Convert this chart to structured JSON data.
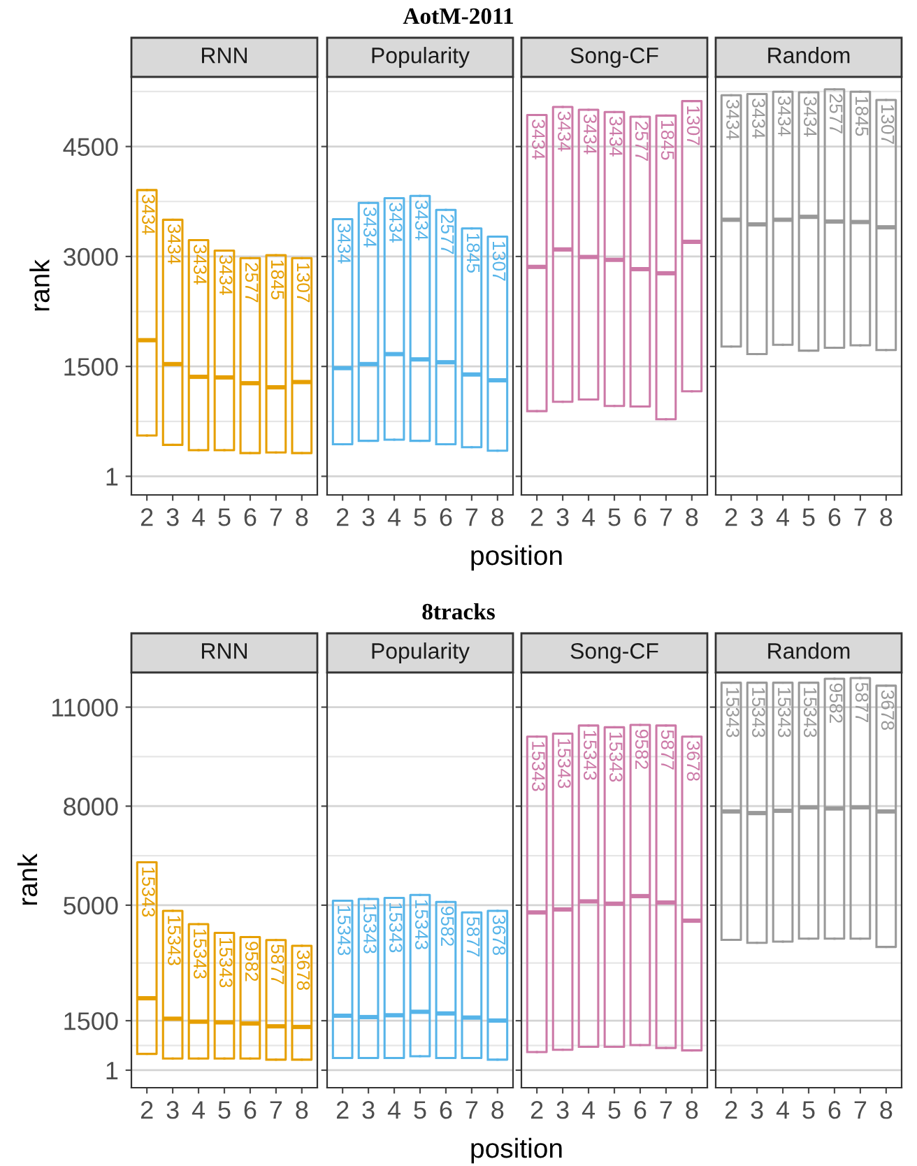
{
  "chart_data": [
    {
      "type": "other",
      "title": "AotM-2011"
    },
    {
      "type": "box",
      "title": "RNN",
      "xlabel": "position",
      "ylabel": "rank",
      "categories": [
        "2",
        "3",
        "4",
        "5",
        "6",
        "7",
        "8"
      ],
      "color": "#e69f00",
      "ylim": [
        -253,
        5450
      ],
      "yticks": [
        1,
        1500,
        3000,
        4500
      ],
      "grid": true,
      "boxes": [
        {
          "low": 557,
          "q1": 557,
          "median": 1858,
          "q3": 3906,
          "high": 3906
        },
        {
          "low": 430,
          "q1": 430,
          "median": 1532,
          "q3": 3501,
          "high": 3501
        },
        {
          "low": 358,
          "q1": 358,
          "median": 1358,
          "q3": 3223,
          "high": 3223
        },
        {
          "low": 358,
          "q1": 358,
          "median": 1350,
          "q3": 3080,
          "high": 3080
        },
        {
          "low": 318,
          "q1": 318,
          "median": 1271,
          "q3": 2977,
          "high": 2977
        },
        {
          "low": 326,
          "q1": 326,
          "median": 1215,
          "q3": 3017,
          "high": 3017
        },
        {
          "low": 318,
          "q1": 318,
          "median": 1287,
          "q3": 2977,
          "high": 2977
        }
      ],
      "annotations": [
        {
          "text": "3434",
          "x": "2",
          "y": 3906
        },
        {
          "text": "3434",
          "x": "3",
          "y": 3501
        },
        {
          "text": "3434",
          "x": "4",
          "y": 3223
        },
        {
          "text": "3434",
          "x": "5",
          "y": 3080
        },
        {
          "text": "2577",
          "x": "6",
          "y": 2977
        },
        {
          "text": "1845",
          "x": "7",
          "y": 3017
        },
        {
          "text": "1307",
          "x": "8",
          "y": 2977
        }
      ]
    },
    {
      "type": "box",
      "title": "Popularity",
      "categories": [
        "2",
        "3",
        "4",
        "5",
        "6",
        "7",
        "8"
      ],
      "color": "#56b4e9",
      "ylim": [
        -253,
        5450
      ],
      "yticks": [
        1,
        1500,
        3000,
        4500
      ],
      "grid": true,
      "tick_labels": "x",
      "boxes": [
        {
          "low": 438,
          "q1": 438,
          "median": 1477,
          "q3": 3509,
          "high": 3509
        },
        {
          "low": 485,
          "q1": 485,
          "median": 1532,
          "q3": 3731,
          "high": 3731
        },
        {
          "low": 501,
          "q1": 501,
          "median": 1668,
          "q3": 3795,
          "high": 3795
        },
        {
          "low": 485,
          "q1": 485,
          "median": 1596,
          "q3": 3827,
          "high": 3827
        },
        {
          "low": 438,
          "q1": 438,
          "median": 1557,
          "q3": 3636,
          "high": 3636
        },
        {
          "low": 398,
          "q1": 398,
          "median": 1390,
          "q3": 3382,
          "high": 3382
        },
        {
          "low": 350,
          "q1": 350,
          "median": 1311,
          "q3": 3271,
          "high": 3271
        }
      ],
      "annotations": [
        {
          "text": "3434",
          "x": "2",
          "y": 3509
        },
        {
          "text": "3434",
          "x": "3",
          "y": 3731
        },
        {
          "text": "3434",
          "x": "4",
          "y": 3795
        },
        {
          "text": "3434",
          "x": "5",
          "y": 3827
        },
        {
          "text": "2577",
          "x": "6",
          "y": 3636
        },
        {
          "text": "1845",
          "x": "7",
          "y": 3382
        },
        {
          "text": "1307",
          "x": "8",
          "y": 3271
        }
      ]
    },
    {
      "type": "box",
      "title": "Song-CF",
      "categories": [
        "2",
        "3",
        "4",
        "5",
        "6",
        "7",
        "8"
      ],
      "color": "#cc79a7",
      "ylim": [
        -253,
        5450
      ],
      "yticks": [
        1,
        1500,
        3000,
        4500
      ],
      "grid": true,
      "tick_labels": "x",
      "boxes": [
        {
          "low": 890,
          "q1": 890,
          "median": 2858,
          "q3": 4930,
          "high": 4930
        },
        {
          "low": 1017,
          "q1": 1017,
          "median": 3096,
          "q3": 5040,
          "high": 5040
        },
        {
          "low": 1049,
          "q1": 1049,
          "median": 2993,
          "q3": 5001,
          "high": 5001
        },
        {
          "low": 961,
          "q1": 961,
          "median": 2954,
          "q3": 4970,
          "high": 4970
        },
        {
          "low": 953,
          "q1": 953,
          "median": 2827,
          "q3": 4906,
          "high": 4906
        },
        {
          "low": 779,
          "q1": 779,
          "median": 2771,
          "q3": 4922,
          "high": 4922
        },
        {
          "low": 1160,
          "q1": 1160,
          "median": 3200,
          "q3": 5120,
          "high": 5120
        }
      ],
      "annotations": [
        {
          "text": "3434",
          "x": "2",
          "y": 4930
        },
        {
          "text": "3434",
          "x": "3",
          "y": 5040
        },
        {
          "text": "3434",
          "x": "4",
          "y": 5001
        },
        {
          "text": "3434",
          "x": "5",
          "y": 4970
        },
        {
          "text": "2577",
          "x": "6",
          "y": 4906
        },
        {
          "text": "1845",
          "x": "7",
          "y": 4922
        },
        {
          "text": "1307",
          "x": "8",
          "y": 5120
        }
      ]
    },
    {
      "type": "box",
      "title": "Random",
      "categories": [
        "2",
        "3",
        "4",
        "5",
        "6",
        "7",
        "8"
      ],
      "color": "#999999",
      "ylim": [
        -253,
        5450
      ],
      "yticks": [
        1,
        1500,
        3000,
        4500
      ],
      "grid": true,
      "tick_labels": "x",
      "boxes": [
        {
          "low": 1771,
          "q1": 1771,
          "median": 3501,
          "q3": 5200,
          "high": 5200
        },
        {
          "low": 1668,
          "q1": 1668,
          "median": 3438,
          "q3": 5216,
          "high": 5216
        },
        {
          "low": 1795,
          "q1": 1795,
          "median": 3501,
          "q3": 5248,
          "high": 5248
        },
        {
          "low": 1715,
          "q1": 1715,
          "median": 3541,
          "q3": 5240,
          "high": 5240
        },
        {
          "low": 1755,
          "q1": 1755,
          "median": 3477,
          "q3": 5280,
          "high": 5280
        },
        {
          "low": 1787,
          "q1": 1787,
          "median": 3470,
          "q3": 5248,
          "high": 5248
        },
        {
          "low": 1723,
          "q1": 1723,
          "median": 3398,
          "q3": 5136,
          "high": 5136
        }
      ],
      "annotations": [
        {
          "text": "3434",
          "x": "2",
          "y": 5200
        },
        {
          "text": "3434",
          "x": "3",
          "y": 5216
        },
        {
          "text": "3434",
          "x": "4",
          "y": 5248
        },
        {
          "text": "3434",
          "x": "5",
          "y": 5240
        },
        {
          "text": "2577",
          "x": "6",
          "y": 5280
        },
        {
          "text": "1845",
          "x": "7",
          "y": 5248
        },
        {
          "text": "1307",
          "x": "8",
          "y": 5136
        }
      ]
    },
    {
      "type": "other",
      "title": "8tracks"
    },
    {
      "type": "box",
      "title": "RNN",
      "xlabel": "position",
      "ylabel": "rank",
      "categories": [
        "2",
        "3",
        "4",
        "5",
        "6",
        "7",
        "8"
      ],
      "color": "#e69f00",
      "ylim": [
        -530,
        12050
      ],
      "yticks": [
        1,
        1500,
        5000,
        8000,
        11000
      ],
      "grid": true,
      "boxes": [
        {
          "low": 495,
          "q1": 495,
          "median": 2180,
          "q3": 6300,
          "high": 6300
        },
        {
          "low": 355,
          "q1": 355,
          "median": 1560,
          "q3": 4830,
          "high": 4830
        },
        {
          "low": 355,
          "q1": 355,
          "median": 1470,
          "q3": 4425,
          "high": 4425
        },
        {
          "low": 355,
          "q1": 355,
          "median": 1450,
          "q3": 4160,
          "high": 4160
        },
        {
          "low": 355,
          "q1": 355,
          "median": 1415,
          "q3": 4035,
          "high": 4035
        },
        {
          "low": 320,
          "q1": 320,
          "median": 1330,
          "q3": 3945,
          "high": 3945
        },
        {
          "low": 320,
          "q1": 320,
          "median": 1310,
          "q3": 3770,
          "high": 3770
        }
      ],
      "annotations": [
        {
          "text": "15343",
          "x": "2",
          "y": 6300
        },
        {
          "text": "15343",
          "x": "3",
          "y": 4830
        },
        {
          "text": "15343",
          "x": "4",
          "y": 4425
        },
        {
          "text": "15343",
          "x": "5",
          "y": 4160
        },
        {
          "text": "9582",
          "x": "6",
          "y": 4035
        },
        {
          "text": "5877",
          "x": "7",
          "y": 3945
        },
        {
          "text": "3678",
          "x": "8",
          "y": 3770
        }
      ]
    },
    {
      "type": "box",
      "title": "Popularity",
      "categories": [
        "2",
        "3",
        "4",
        "5",
        "6",
        "7",
        "8"
      ],
      "color": "#56b4e9",
      "ylim": [
        -530,
        12050
      ],
      "yticks": [
        1,
        1500,
        5000,
        8000,
        11000
      ],
      "grid": true,
      "tick_labels": "x",
      "boxes": [
        {
          "low": 370,
          "q1": 370,
          "median": 1650,
          "q3": 5135,
          "high": 5135
        },
        {
          "low": 370,
          "q1": 370,
          "median": 1610,
          "q3": 5190,
          "high": 5190
        },
        {
          "low": 370,
          "q1": 370,
          "median": 1665,
          "q3": 5220,
          "high": 5220
        },
        {
          "low": 425,
          "q1": 425,
          "median": 1770,
          "q3": 5310,
          "high": 5310
        },
        {
          "low": 370,
          "q1": 370,
          "median": 1720,
          "q3": 5100,
          "high": 5100
        },
        {
          "low": 370,
          "q1": 370,
          "median": 1595,
          "q3": 4780,
          "high": 4780
        },
        {
          "low": 320,
          "q1": 320,
          "median": 1505,
          "q3": 4830,
          "high": 4830
        }
      ],
      "annotations": [
        {
          "text": "15343",
          "x": "2",
          "y": 5135
        },
        {
          "text": "15343",
          "x": "3",
          "y": 5190
        },
        {
          "text": "15343",
          "x": "4",
          "y": 5220
        },
        {
          "text": "15343",
          "x": "5",
          "y": 5310
        },
        {
          "text": "9582",
          "x": "6",
          "y": 5100
        },
        {
          "text": "5877",
          "x": "7",
          "y": 4780
        },
        {
          "text": "3678",
          "x": "8",
          "y": 4830
        }
      ]
    },
    {
      "type": "box",
      "title": "Song-CF",
      "categories": [
        "2",
        "3",
        "4",
        "5",
        "6",
        "7",
        "8"
      ],
      "color": "#cc79a7",
      "ylim": [
        -530,
        12050
      ],
      "yticks": [
        1,
        1500,
        5000,
        8000,
        11000
      ],
      "grid": true,
      "tick_labels": "x",
      "boxes": [
        {
          "low": 550,
          "q1": 550,
          "median": 4780,
          "q3": 10107,
          "high": 10107
        },
        {
          "low": 620,
          "q1": 620,
          "median": 4870,
          "q3": 10195,
          "high": 10195
        },
        {
          "low": 710,
          "q1": 710,
          "median": 5115,
          "q3": 10443,
          "high": 10443
        },
        {
          "low": 710,
          "q1": 710,
          "median": 5045,
          "q3": 10390,
          "high": 10390
        },
        {
          "low": 760,
          "q1": 760,
          "median": 5275,
          "q3": 10460,
          "high": 10460
        },
        {
          "low": 675,
          "q1": 675,
          "median": 5080,
          "q3": 10443,
          "high": 10443
        },
        {
          "low": 600,
          "q1": 600,
          "median": 4530,
          "q3": 10107,
          "high": 10107
        }
      ],
      "annotations": [
        {
          "text": "15343",
          "x": "2",
          "y": 10107
        },
        {
          "text": "15343",
          "x": "3",
          "y": 10195
        },
        {
          "text": "15343",
          "x": "4",
          "y": 10443
        },
        {
          "text": "15343",
          "x": "5",
          "y": 10390
        },
        {
          "text": "9582",
          "x": "6",
          "y": 10460
        },
        {
          "text": "5877",
          "x": "7",
          "y": 10443
        },
        {
          "text": "3678",
          "x": "8",
          "y": 10107
        }
      ]
    },
    {
      "type": "box",
      "title": "Random",
      "categories": [
        "2",
        "3",
        "4",
        "5",
        "6",
        "7",
        "8"
      ],
      "color": "#999999",
      "ylim": [
        -530,
        12050
      ],
      "yticks": [
        1,
        1500,
        5000,
        8000,
        11000
      ],
      "grid": true,
      "tick_labels": "x",
      "boxes": [
        {
          "low": 3950,
          "q1": 3950,
          "median": 7840,
          "q3": 11740,
          "high": 11740
        },
        {
          "low": 3860,
          "q1": 3860,
          "median": 7790,
          "q3": 11740,
          "high": 11740
        },
        {
          "low": 3895,
          "q1": 3895,
          "median": 7860,
          "q3": 11740,
          "high": 11740
        },
        {
          "low": 3985,
          "q1": 3985,
          "median": 7965,
          "q3": 11740,
          "high": 11740
        },
        {
          "low": 3985,
          "q1": 3985,
          "median": 7930,
          "q3": 11860,
          "high": 11860
        },
        {
          "low": 3985,
          "q1": 3985,
          "median": 7965,
          "q3": 11880,
          "high": 11880
        },
        {
          "low": 3735,
          "q1": 3735,
          "median": 7840,
          "q3": 11650,
          "high": 11650
        }
      ],
      "annotations": [
        {
          "text": "15343",
          "x": "2",
          "y": 11740
        },
        {
          "text": "15343",
          "x": "3",
          "y": 11740
        },
        {
          "text": "15343",
          "x": "4",
          "y": 11740
        },
        {
          "text": "15343",
          "x": "5",
          "y": 11740
        },
        {
          "text": "9582",
          "x": "6",
          "y": 11860
        },
        {
          "text": "5877",
          "x": "7",
          "y": 11880
        },
        {
          "text": "3678",
          "x": "8",
          "y": 11650
        }
      ]
    }
  ]
}
